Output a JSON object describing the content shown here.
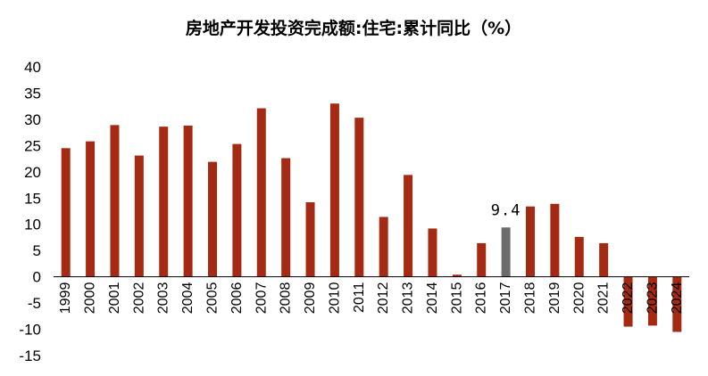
{
  "chart_data": {
    "type": "bar",
    "title": "房地产开发投资完成额:住宅:累计同比（%）",
    "xlabel": "",
    "ylabel": "",
    "categories": [
      "1999",
      "2000",
      "2001",
      "2002",
      "2003",
      "2004",
      "2005",
      "2006",
      "2007",
      "2008",
      "2009",
      "2010",
      "2011",
      "2012",
      "2013",
      "2014",
      "2015",
      "2016",
      "2017",
      "2018",
      "2019",
      "2020",
      "2021",
      "2022",
      "2023",
      "2024"
    ],
    "series": [
      {
        "values": [
          24.5,
          25.8,
          28.9,
          23.1,
          28.6,
          28.8,
          21.9,
          25.3,
          32.1,
          22.6,
          14.2,
          33.0,
          30.3,
          11.4,
          19.4,
          9.2,
          0.4,
          6.4,
          9.4,
          13.4,
          13.9,
          7.6,
          6.4,
          -9.5,
          -9.3,
          -10.5
        ]
      }
    ],
    "ylim": [
      -15,
      40
    ],
    "yticks": [
      -15,
      -10,
      -5,
      0,
      5,
      10,
      15,
      20,
      25,
      30,
      35,
      40
    ],
    "data_labels": [
      {
        "category": "2017",
        "text": "9.4"
      }
    ],
    "colors": {
      "bar": "#A52A13",
      "highlight": "#6B6B6B"
    },
    "highlight_category": "2017",
    "grid": false,
    "legend": "none"
  }
}
